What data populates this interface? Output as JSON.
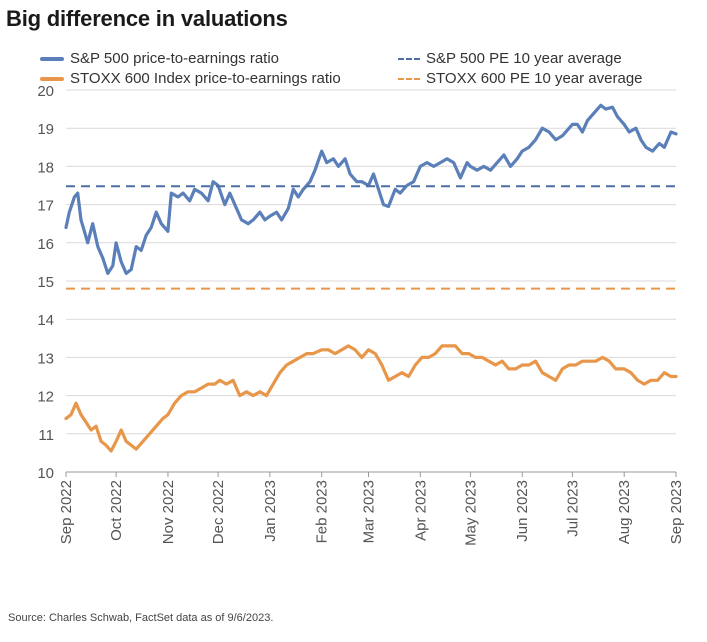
{
  "title": "Big difference in valuations",
  "source": "Source: Charles Schwab, FactSet data as of 9/6/2023.",
  "chart_data": {
    "type": "line",
    "ylim": [
      10,
      20
    ],
    "yticks": [
      10,
      11,
      12,
      13,
      14,
      15,
      16,
      17,
      18,
      19,
      20
    ],
    "xlim": [
      "2022-09-01",
      "2023-09-01"
    ],
    "xticks": [
      {
        "date": "2022-09-01",
        "label": "Sep 2022"
      },
      {
        "date": "2022-10-01",
        "label": "Oct 2022"
      },
      {
        "date": "2022-11-01",
        "label": "Nov 2022"
      },
      {
        "date": "2022-12-01",
        "label": "Dec 2022"
      },
      {
        "date": "2023-01-01",
        "label": "Jan 2023"
      },
      {
        "date": "2023-02-01",
        "label": "Feb 2023"
      },
      {
        "date": "2023-03-01",
        "label": "Mar 2023"
      },
      {
        "date": "2023-04-01",
        "label": "Apr 2023"
      },
      {
        "date": "2023-05-01",
        "label": "May 2023"
      },
      {
        "date": "2023-06-01",
        "label": "Jun 2023"
      },
      {
        "date": "2023-07-01",
        "label": "Jul 2023"
      },
      {
        "date": "2023-08-01",
        "label": "Aug 2023"
      },
      {
        "date": "2023-09-01",
        "label": "Sep 2023"
      }
    ],
    "grid": "horizontal",
    "legend_position": "top",
    "series": [
      {
        "name": "S&P 500 price-to-earnings ratio",
        "style": "solid",
        "color": "#5b7fb8",
        "points": [
          [
            "2022-09-01",
            16.4
          ],
          [
            "2022-09-03",
            16.8
          ],
          [
            "2022-09-06",
            17.2
          ],
          [
            "2022-09-08",
            17.3
          ],
          [
            "2022-09-10",
            16.6
          ],
          [
            "2022-09-12",
            16.3
          ],
          [
            "2022-09-14",
            16.0
          ],
          [
            "2022-09-17",
            16.5
          ],
          [
            "2022-09-20",
            15.9
          ],
          [
            "2022-09-23",
            15.6
          ],
          [
            "2022-09-26",
            15.2
          ],
          [
            "2022-09-29",
            15.4
          ],
          [
            "2022-10-01",
            16.0
          ],
          [
            "2022-10-04",
            15.5
          ],
          [
            "2022-10-07",
            15.2
          ],
          [
            "2022-10-10",
            15.3
          ],
          [
            "2022-10-13",
            15.9
          ],
          [
            "2022-10-16",
            15.8
          ],
          [
            "2022-10-19",
            16.2
          ],
          [
            "2022-10-22",
            16.4
          ],
          [
            "2022-10-25",
            16.8
          ],
          [
            "2022-10-28",
            16.5
          ],
          [
            "2022-11-01",
            16.3
          ],
          [
            "2022-11-03",
            17.3
          ],
          [
            "2022-11-07",
            17.2
          ],
          [
            "2022-11-10",
            17.3
          ],
          [
            "2022-11-14",
            17.1
          ],
          [
            "2022-11-17",
            17.4
          ],
          [
            "2022-11-21",
            17.3
          ],
          [
            "2022-11-25",
            17.1
          ],
          [
            "2022-11-28",
            17.6
          ],
          [
            "2022-12-01",
            17.5
          ],
          [
            "2022-12-05",
            17.0
          ],
          [
            "2022-12-08",
            17.3
          ],
          [
            "2022-12-12",
            16.9
          ],
          [
            "2022-12-15",
            16.6
          ],
          [
            "2022-12-19",
            16.5
          ],
          [
            "2022-12-22",
            16.6
          ],
          [
            "2022-12-26",
            16.8
          ],
          [
            "2022-12-29",
            16.6
          ],
          [
            "2023-01-01",
            16.7
          ],
          [
            "2023-01-05",
            16.8
          ],
          [
            "2023-01-08",
            16.6
          ],
          [
            "2023-01-12",
            16.9
          ],
          [
            "2023-01-15",
            17.4
          ],
          [
            "2023-01-18",
            17.2
          ],
          [
            "2023-01-21",
            17.4
          ],
          [
            "2023-01-25",
            17.6
          ],
          [
            "2023-01-28",
            17.9
          ],
          [
            "2023-02-01",
            18.4
          ],
          [
            "2023-02-04",
            18.1
          ],
          [
            "2023-02-08",
            18.2
          ],
          [
            "2023-02-11",
            18.0
          ],
          [
            "2023-02-15",
            18.2
          ],
          [
            "2023-02-18",
            17.8
          ],
          [
            "2023-02-22",
            17.6
          ],
          [
            "2023-02-25",
            17.6
          ],
          [
            "2023-03-01",
            17.5
          ],
          [
            "2023-03-04",
            17.8
          ],
          [
            "2023-03-07",
            17.4
          ],
          [
            "2023-03-10",
            17.0
          ],
          [
            "2023-03-13",
            16.95
          ],
          [
            "2023-03-17",
            17.4
          ],
          [
            "2023-03-20",
            17.3
          ],
          [
            "2023-03-24",
            17.5
          ],
          [
            "2023-03-28",
            17.6
          ],
          [
            "2023-04-01",
            18.0
          ],
          [
            "2023-04-05",
            18.1
          ],
          [
            "2023-04-09",
            18.0
          ],
          [
            "2023-04-13",
            18.1
          ],
          [
            "2023-04-17",
            18.2
          ],
          [
            "2023-04-21",
            18.1
          ],
          [
            "2023-04-25",
            17.7
          ],
          [
            "2023-04-29",
            18.1
          ],
          [
            "2023-05-01",
            18.0
          ],
          [
            "2023-05-05",
            17.9
          ],
          [
            "2023-05-09",
            18.0
          ],
          [
            "2023-05-13",
            17.9
          ],
          [
            "2023-05-17",
            18.1
          ],
          [
            "2023-05-21",
            18.3
          ],
          [
            "2023-05-25",
            18.0
          ],
          [
            "2023-05-29",
            18.2
          ],
          [
            "2023-06-01",
            18.4
          ],
          [
            "2023-06-05",
            18.5
          ],
          [
            "2023-06-09",
            18.7
          ],
          [
            "2023-06-13",
            19.0
          ],
          [
            "2023-06-17",
            18.9
          ],
          [
            "2023-06-21",
            18.7
          ],
          [
            "2023-06-25",
            18.8
          ],
          [
            "2023-07-01",
            19.1
          ],
          [
            "2023-07-04",
            19.1
          ],
          [
            "2023-07-07",
            18.9
          ],
          [
            "2023-07-10",
            19.2
          ],
          [
            "2023-07-14",
            19.4
          ],
          [
            "2023-07-18",
            19.6
          ],
          [
            "2023-07-21",
            19.5
          ],
          [
            "2023-07-25",
            19.55
          ],
          [
            "2023-07-28",
            19.3
          ],
          [
            "2023-08-01",
            19.1
          ],
          [
            "2023-08-04",
            18.9
          ],
          [
            "2023-08-08",
            19.0
          ],
          [
            "2023-08-11",
            18.7
          ],
          [
            "2023-08-14",
            18.5
          ],
          [
            "2023-08-18",
            18.4
          ],
          [
            "2023-08-22",
            18.6
          ],
          [
            "2023-08-25",
            18.5
          ],
          [
            "2023-08-29",
            18.9
          ],
          [
            "2023-09-01",
            18.85
          ]
        ]
      },
      {
        "name": "STOXX 600 Index price-to-earnings ratio",
        "style": "solid",
        "color": "#e8964a",
        "points": [
          [
            "2022-09-01",
            11.4
          ],
          [
            "2022-09-04",
            11.5
          ],
          [
            "2022-09-07",
            11.8
          ],
          [
            "2022-09-10",
            11.5
          ],
          [
            "2022-09-13",
            11.3
          ],
          [
            "2022-09-16",
            11.1
          ],
          [
            "2022-09-19",
            11.2
          ],
          [
            "2022-09-22",
            10.8
          ],
          [
            "2022-09-25",
            10.7
          ],
          [
            "2022-09-28",
            10.55
          ],
          [
            "2022-10-01",
            10.8
          ],
          [
            "2022-10-04",
            11.1
          ],
          [
            "2022-10-07",
            10.8
          ],
          [
            "2022-10-10",
            10.7
          ],
          [
            "2022-10-13",
            10.6
          ],
          [
            "2022-10-17",
            10.8
          ],
          [
            "2022-10-21",
            11.0
          ],
          [
            "2022-10-25",
            11.2
          ],
          [
            "2022-10-29",
            11.4
          ],
          [
            "2022-11-01",
            11.5
          ],
          [
            "2022-11-05",
            11.8
          ],
          [
            "2022-11-09",
            12.0
          ],
          [
            "2022-11-13",
            12.1
          ],
          [
            "2022-11-17",
            12.1
          ],
          [
            "2022-11-21",
            12.2
          ],
          [
            "2022-11-25",
            12.3
          ],
          [
            "2022-11-29",
            12.3
          ],
          [
            "2022-12-02",
            12.4
          ],
          [
            "2022-12-06",
            12.3
          ],
          [
            "2022-12-10",
            12.4
          ],
          [
            "2022-12-14",
            12.0
          ],
          [
            "2022-12-18",
            12.1
          ],
          [
            "2022-12-22",
            12.0
          ],
          [
            "2022-12-26",
            12.1
          ],
          [
            "2022-12-30",
            12.0
          ],
          [
            "2023-01-03",
            12.3
          ],
          [
            "2023-01-07",
            12.6
          ],
          [
            "2023-01-11",
            12.8
          ],
          [
            "2023-01-15",
            12.9
          ],
          [
            "2023-01-19",
            13.0
          ],
          [
            "2023-01-23",
            13.1
          ],
          [
            "2023-01-27",
            13.1
          ],
          [
            "2023-02-01",
            13.2
          ],
          [
            "2023-02-05",
            13.2
          ],
          [
            "2023-02-09",
            13.1
          ],
          [
            "2023-02-13",
            13.2
          ],
          [
            "2023-02-17",
            13.3
          ],
          [
            "2023-02-21",
            13.2
          ],
          [
            "2023-02-25",
            13.0
          ],
          [
            "2023-03-01",
            13.2
          ],
          [
            "2023-03-05",
            13.1
          ],
          [
            "2023-03-09",
            12.8
          ],
          [
            "2023-03-13",
            12.4
          ],
          [
            "2023-03-17",
            12.5
          ],
          [
            "2023-03-21",
            12.6
          ],
          [
            "2023-03-25",
            12.5
          ],
          [
            "2023-03-29",
            12.8
          ],
          [
            "2023-04-02",
            13.0
          ],
          [
            "2023-04-06",
            13.0
          ],
          [
            "2023-04-10",
            13.1
          ],
          [
            "2023-04-14",
            13.3
          ],
          [
            "2023-04-18",
            13.3
          ],
          [
            "2023-04-22",
            13.3
          ],
          [
            "2023-04-26",
            13.1
          ],
          [
            "2023-04-30",
            13.1
          ],
          [
            "2023-05-04",
            13.0
          ],
          [
            "2023-05-08",
            13.0
          ],
          [
            "2023-05-12",
            12.9
          ],
          [
            "2023-05-16",
            12.8
          ],
          [
            "2023-05-20",
            12.9
          ],
          [
            "2023-05-24",
            12.7
          ],
          [
            "2023-05-28",
            12.7
          ],
          [
            "2023-06-01",
            12.8
          ],
          [
            "2023-06-05",
            12.8
          ],
          [
            "2023-06-09",
            12.9
          ],
          [
            "2023-06-13",
            12.6
          ],
          [
            "2023-06-17",
            12.5
          ],
          [
            "2023-06-21",
            12.4
          ],
          [
            "2023-06-25",
            12.7
          ],
          [
            "2023-06-29",
            12.8
          ],
          [
            "2023-07-03",
            12.8
          ],
          [
            "2023-07-07",
            12.9
          ],
          [
            "2023-07-11",
            12.9
          ],
          [
            "2023-07-15",
            12.9
          ],
          [
            "2023-07-19",
            13.0
          ],
          [
            "2023-07-23",
            12.9
          ],
          [
            "2023-07-27",
            12.7
          ],
          [
            "2023-08-01",
            12.7
          ],
          [
            "2023-08-05",
            12.6
          ],
          [
            "2023-08-09",
            12.4
          ],
          [
            "2023-08-13",
            12.3
          ],
          [
            "2023-08-17",
            12.4
          ],
          [
            "2023-08-21",
            12.4
          ],
          [
            "2023-08-25",
            12.6
          ],
          [
            "2023-08-29",
            12.5
          ],
          [
            "2023-09-01",
            12.5
          ]
        ]
      },
      {
        "name": "S&P 500 PE 10 year average",
        "style": "dashed",
        "color": "#4a6fa5",
        "value": 17.48
      },
      {
        "name": "STOXX 600 PE 10 year average",
        "style": "dashed",
        "color": "#e8964a",
        "value": 14.8
      }
    ]
  }
}
